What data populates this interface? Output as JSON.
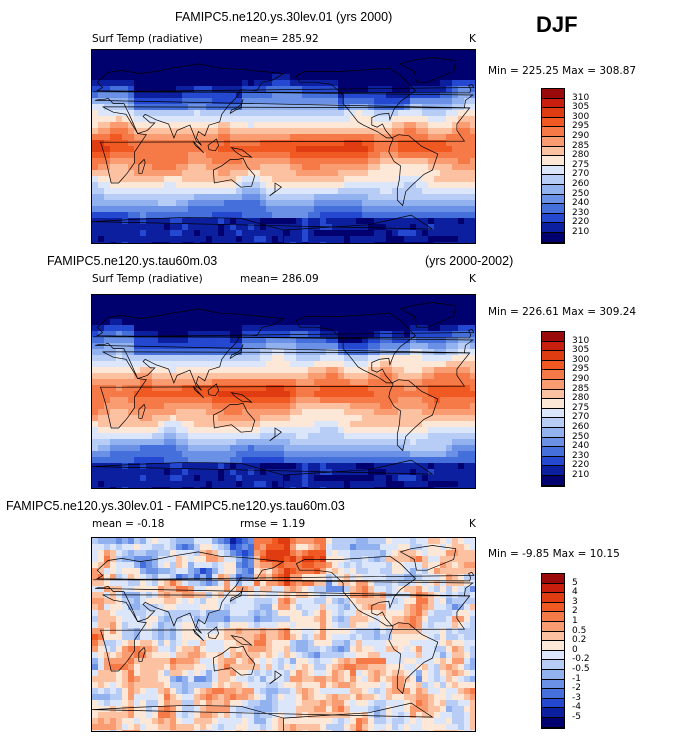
{
  "season": "DJF",
  "panels": [
    {
      "title": "FAMIPC5.ne120.ys.30lev.01 (yrs 2000)",
      "title_right": "",
      "var_label": "Surf Temp (radiative)",
      "stat": "mean= 285.92",
      "stat2": "",
      "unit": "K",
      "minmax": "Min = 225.25 Max = 308.87",
      "field": "temperature",
      "colorbar": {
        "levels": [
          "310",
          "305",
          "300",
          "295",
          "290",
          "285",
          "280",
          "275",
          "270",
          "260",
          "250",
          "240",
          "230",
          "220",
          "210"
        ],
        "colors": [
          "#9b0a0a",
          "#c81e0e",
          "#e03c12",
          "#f05a22",
          "#f57a48",
          "#f99c72",
          "#fcc1a1",
          "#fde8d8",
          "#dbe6fb",
          "#b8cdf6",
          "#92b1ef",
          "#6a91e6",
          "#4570dc",
          "#2448cf",
          "#0c1f9e",
          "#00006e"
        ]
      }
    },
    {
      "title": "FAMIPC5.ne120.ys.tau60m.03",
      "title_right": "(yrs 2000-2002)",
      "var_label": "Surf Temp (radiative)",
      "stat": "mean= 286.09",
      "stat2": "",
      "unit": "K",
      "minmax": "Min = 226.61 Max = 309.24",
      "field": "temperature",
      "colorbar": {
        "levels": [
          "310",
          "305",
          "300",
          "295",
          "290",
          "285",
          "280",
          "275",
          "270",
          "260",
          "250",
          "240",
          "230",
          "220",
          "210"
        ],
        "colors": [
          "#9b0a0a",
          "#c81e0e",
          "#e03c12",
          "#f05a22",
          "#f57a48",
          "#f99c72",
          "#fcc1a1",
          "#fde8d8",
          "#dbe6fb",
          "#b8cdf6",
          "#92b1ef",
          "#6a91e6",
          "#4570dc",
          "#2448cf",
          "#0c1f9e",
          "#00006e"
        ]
      }
    },
    {
      "title": "FAMIPC5.ne120.ys.30lev.01 - FAMIPC5.ne120.ys.tau60m.03",
      "title_right": "",
      "var_label": "",
      "stat": "mean =  -0.18",
      "stat2": "rmse =   1.19",
      "unit": "K",
      "minmax": "Min =  -9.85 Max =  10.15",
      "field": "difference",
      "colorbar": {
        "levels": [
          "5",
          "4",
          "3",
          "2",
          "1",
          "0.5",
          "0.2",
          "0",
          "-0.2",
          "-0.5",
          "-1",
          "-2",
          "-3",
          "-4",
          "-5"
        ],
        "colors": [
          "#9b0a0a",
          "#c81e0e",
          "#e03c12",
          "#f05a22",
          "#f57a48",
          "#f99c72",
          "#fcc1a1",
          "#fde8d8",
          "#dbe6fb",
          "#b8cdf6",
          "#92b1ef",
          "#6a91e6",
          "#4570dc",
          "#2448cf",
          "#0c1f9e",
          "#00006e"
        ]
      }
    }
  ]
}
